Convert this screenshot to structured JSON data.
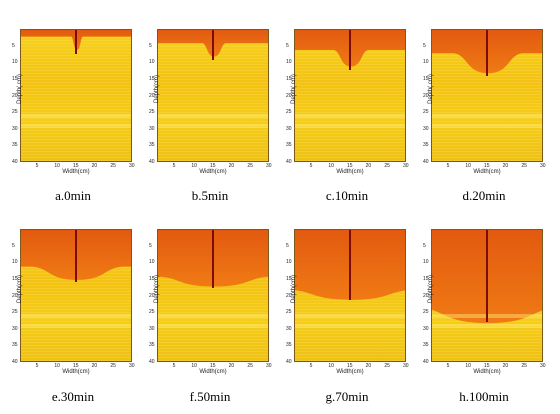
{
  "axes": {
    "xlabel": "Width(cm)",
    "ylabel_variants": [
      "Depth( cm)",
      "Depth(cm)"
    ],
    "x_ticks": [
      "5",
      "10",
      "15",
      "20",
      "25",
      "30"
    ],
    "y_ticks": [
      "5",
      "10",
      "15",
      "20",
      "25",
      "30",
      "35",
      "40"
    ],
    "x_range_cm": [
      0,
      30
    ],
    "y_range_cm": [
      0,
      40
    ]
  },
  "colors": {
    "dry_soil": "#f3c212",
    "wetted_soil": "#f07a14",
    "wetted_surface": "#e25a10",
    "needle": "#7a0d07"
  },
  "panels": [
    {
      "caption": "a.0min",
      "ylabel": "Depth( cm)",
      "front_depth_cm": 2,
      "bulb_depth_cm": 6,
      "bulb_halfwidth_cm": 1
    },
    {
      "caption": "b.5min",
      "ylabel": "Depth(cm)",
      "front_depth_cm": 4,
      "bulb_depth_cm": 8,
      "bulb_halfwidth_cm": 2
    },
    {
      "caption": "c.10min",
      "ylabel": "Depth( cm)",
      "front_depth_cm": 6,
      "bulb_depth_cm": 11,
      "bulb_halfwidth_cm": 3
    },
    {
      "caption": "d.20min",
      "ylabel": "Depth( cm)",
      "front_depth_cm": 7,
      "bulb_depth_cm": 13,
      "bulb_halfwidth_cm": 6
    },
    {
      "caption": "e.30min",
      "ylabel": "Depth(cm)",
      "front_depth_cm": 11,
      "bulb_depth_cm": 15,
      "bulb_halfwidth_cm": 8
    },
    {
      "caption": "f.50min",
      "ylabel": "Depth(cm)",
      "front_depth_cm": 14,
      "bulb_depth_cm": 17,
      "bulb_halfwidth_cm": 10
    },
    {
      "caption": "g.70min",
      "ylabel": "Depth(cm)",
      "front_depth_cm": 18,
      "bulb_depth_cm": 21,
      "bulb_halfwidth_cm": 11
    },
    {
      "caption": "h.100min",
      "ylabel": "Depth(cm)",
      "front_depth_cm": 23,
      "bulb_depth_cm": 28,
      "bulb_halfwidth_cm": 13
    }
  ]
}
